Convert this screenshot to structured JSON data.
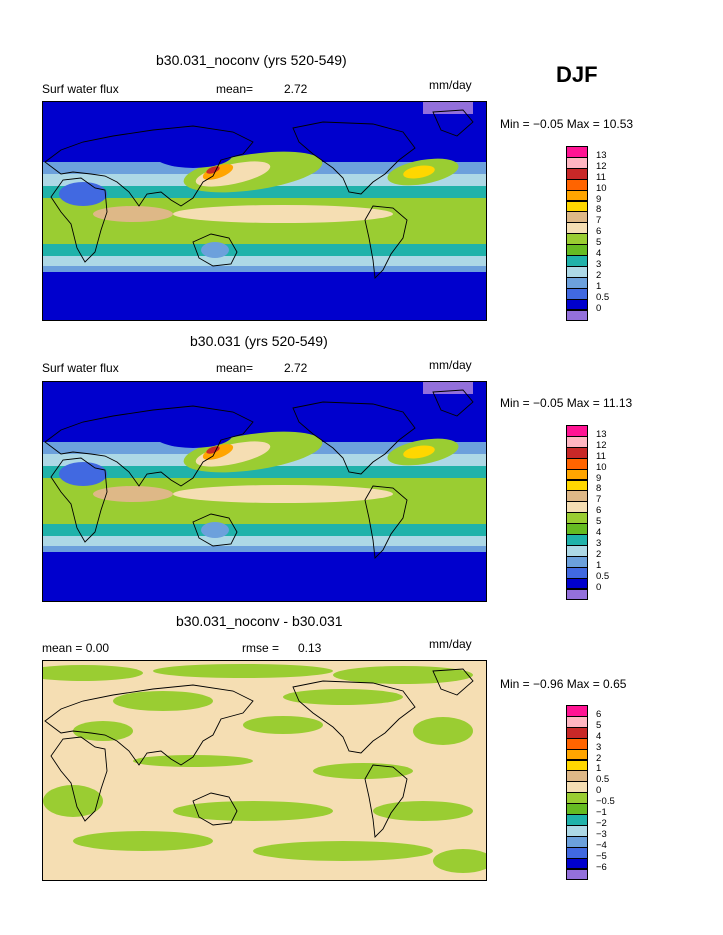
{
  "season": "DJF",
  "units_label": "mm/day",
  "panels": [
    {
      "title": "b30.031_noconv (yrs 520-549)",
      "left_text": "Surf water flux",
      "stat_label": "mean=",
      "stat_value": "2.72",
      "minmax": "Min =  −0.05 Max =  10.53",
      "colorbar_labels": [
        "13",
        "12",
        "11",
        "10",
        "9",
        "8",
        "7",
        "6",
        "5",
        "4",
        "3",
        "2",
        "1",
        "0.5",
        "0"
      ]
    },
    {
      "title": "b30.031 (yrs 520-549)",
      "left_text": "Surf water flux",
      "stat_label": "mean=",
      "stat_value": "2.72",
      "minmax": "Min =  −0.05 Max =  11.13",
      "colorbar_labels": [
        "13",
        "12",
        "11",
        "10",
        "9",
        "8",
        "7",
        "6",
        "5",
        "4",
        "3",
        "2",
        "1",
        "0.5",
        "0"
      ]
    },
    {
      "title": "b30.031_noconv - b30.031",
      "left_text": "mean =    0.00",
      "stat_label": "rmse =",
      "stat_value": "0.13",
      "minmax": "Min =  −0.96 Max =    0.65",
      "colorbar_labels": [
        "6",
        "5",
        "4",
        "3",
        "2",
        "1",
        "0.5",
        "0",
        "−0.5",
        "−1",
        "−2",
        "−3",
        "−4",
        "−5",
        "−6"
      ]
    }
  ],
  "colors": {
    "palette": [
      "#ff1493",
      "#ffb6c1",
      "#c82828",
      "#ff6400",
      "#ffa500",
      "#ffd700",
      "#deb887",
      "#f5deb3",
      "#9acd32",
      "#66bb22",
      "#20b2aa",
      "#add8e6",
      "#6ca0dc",
      "#4169e1",
      "#0000cd",
      "#9370db"
    ]
  },
  "chart_data": [
    {
      "type": "heatmap",
      "title": "b30.031_noconv (yrs 520-549)",
      "subtitle": "Surf water flux",
      "units": "mm/day",
      "mean": 2.72,
      "min": -0.05,
      "max": 10.53,
      "levels": [
        0,
        0.5,
        1,
        2,
        3,
        4,
        5,
        6,
        7,
        8,
        9,
        10,
        11,
        12,
        13
      ]
    },
    {
      "type": "heatmap",
      "title": "b30.031 (yrs 520-549)",
      "subtitle": "Surf water flux",
      "units": "mm/day",
      "mean": 2.72,
      "min": -0.05,
      "max": 11.13,
      "levels": [
        0,
        0.5,
        1,
        2,
        3,
        4,
        5,
        6,
        7,
        8,
        9,
        10,
        11,
        12,
        13
      ]
    },
    {
      "type": "heatmap",
      "title": "b30.031_noconv - b30.031",
      "units": "mm/day",
      "mean": 0.0,
      "rmse": 0.13,
      "min": -0.96,
      "max": 0.65,
      "levels": [
        -6,
        -5,
        -4,
        -3,
        -2,
        -1,
        -0.5,
        0,
        0.5,
        1,
        2,
        3,
        4,
        5,
        6
      ]
    }
  ]
}
